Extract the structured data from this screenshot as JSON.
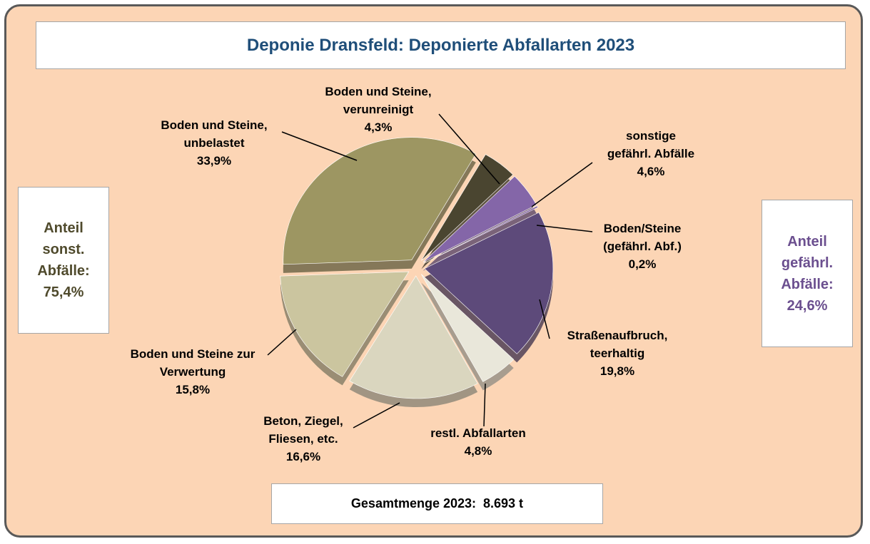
{
  "chart_data": {
    "type": "pie",
    "title": "Deponie Dransfeld:  Deponierte Abfallarten 2023",
    "categories": [
      "Boden und Steine,\nverunreinigt",
      "sonstige\ngefährl. Abfälle",
      "Boden/Steine\n(gefährl. Abf.)",
      "Straßenaufbruch,\nteerhaltig",
      "restl. Abfallarten",
      "Beton, Ziegel,\nFliesen, etc.",
      "Boden und Steine zur\nVerwertung",
      "Boden und Steine,\nunbelastet"
    ],
    "values": [
      4.3,
      4.6,
      0.2,
      19.8,
      4.8,
      16.6,
      15.8,
      33.9
    ],
    "value_labels": [
      "4,3%",
      "4,6%",
      "0,2%",
      "19,8%",
      "4,8%",
      "16,6%",
      "15,8%",
      "33,9%"
    ],
    "colors": [
      "#4a4530",
      "#8466a8",
      "#7e5f9e",
      "#5d4a7a",
      "#e9e7da",
      "#dad6bf",
      "#cbc59f",
      "#9d9662"
    ],
    "annotations": {
      "left_box": [
        "Anteil",
        "sonst.",
        "Abfälle:",
        "75,4%"
      ],
      "right_box": [
        "Anteil",
        "gefährl.",
        "Abfälle:",
        "24,6%"
      ],
      "total": "Gesamtmenge 2023:  8.693 t"
    }
  }
}
